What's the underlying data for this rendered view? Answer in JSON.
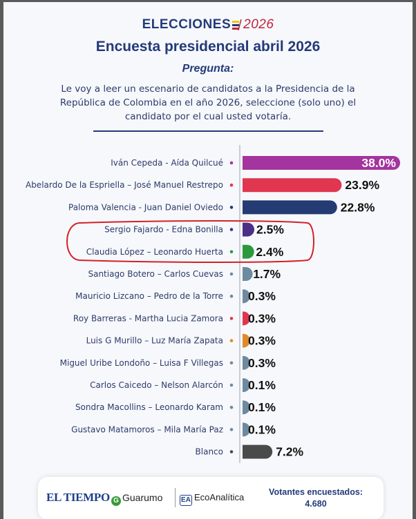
{
  "header": {
    "logo_word": "ELECCIONES",
    "logo_year": "2026",
    "title": "Encuesta presidencial abril 2026",
    "question_label": "Pregunta:",
    "question_text": "Le voy a leer un escenario de candidatos a la Presidencia de la República de Colombia en el año 2026, seleccione (solo uno) el candidato por el cual usted votaría."
  },
  "chart_data": {
    "type": "bar",
    "orientation": "horizontal",
    "categories": [
      "Iván Cepeda - Aída Quilcué",
      "Abelardo De la Espriella – José Manuel Restrepo",
      "Paloma Valencia - Juan Daniel Oviedo",
      "Sergio Fajardo - Edna Bonilla",
      "Claudia López – Leonardo Huerta",
      "Santiago Botero – Carlos Cuevas",
      "Mauricio Lizcano – Pedro de la Torre",
      "Roy Barreras - Martha Lucia Zamora",
      "Luis G Murillo – Luz María Zapata",
      "Miguel Uribe Londoño – Luisa F Villegas",
      "Carlos Caicedo – Nelson Alarcón",
      "Sondra Macollins – Leonardo Karam",
      "Gustavo Matamoros – Mila María Paz",
      "Blanco"
    ],
    "values": [
      38.0,
      23.9,
      22.8,
      2.5,
      2.4,
      1.7,
      0.3,
      0.3,
      0.3,
      0.3,
      0.1,
      0.1,
      0.1,
      7.2
    ],
    "value_labels": [
      "38.0%",
      "23.9%",
      "22.8%",
      "2.5%",
      "2.4%",
      "1.7%",
      "0.3%",
      "0.3%",
      "0.3%",
      "0.3%",
      "0.1%",
      "0.1%",
      "0.1%",
      "7.2%"
    ],
    "colors": [
      "#a4349e",
      "#e0364f",
      "#243b74",
      "#4a2f86",
      "#2a9a3c",
      "#6d8aa0",
      "#6d8aa0",
      "#e0364f",
      "#e08a2a",
      "#6d8aa0",
      "#6d8aa0",
      "#6d8aa0",
      "#6d8aa0",
      "#4a4a4a"
    ],
    "highlighted": [
      "Sergio Fajardo - Edna Bonilla",
      "Claudia López – Leonardo Huerta"
    ],
    "highlight_color": "#d42027",
    "xlim": [
      0,
      38.0
    ]
  },
  "footer": {
    "brand1": "EL TIEMPO",
    "brand2": "Guarumo",
    "brand3": "EcoAnalítica",
    "votes_label": "Votantes encuestados:",
    "votes_value": "4.680"
  }
}
